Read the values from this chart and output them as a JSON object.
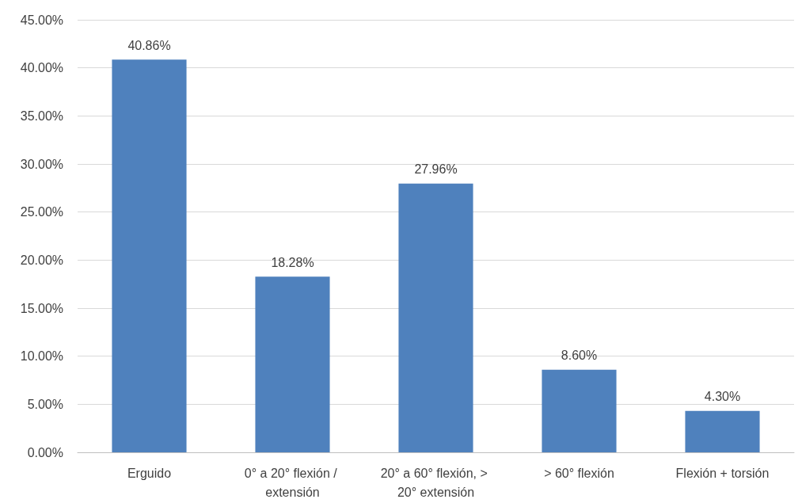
{
  "chart_data": {
    "type": "bar",
    "categories": [
      "Erguido",
      "0° a 20° flexión / extensión",
      "20° a 60° flexión, > 20° extensión",
      "> 60° flexión",
      "Flexión + torsión"
    ],
    "values": [
      40.86,
      18.28,
      27.96,
      8.6,
      4.3
    ],
    "value_labels": [
      "40.86%",
      "18.28%",
      "27.96%",
      "8.60%",
      "4.30%"
    ],
    "color": "#4f81bd",
    "ylim": [
      0,
      45
    ],
    "yticks": [
      {
        "value": 0,
        "label": "0.00%"
      },
      {
        "value": 5,
        "label": "5.00%"
      },
      {
        "value": 10,
        "label": "10.00%"
      },
      {
        "value": 15,
        "label": "15.00%"
      },
      {
        "value": 20,
        "label": "20.00%"
      },
      {
        "value": 25,
        "label": "25.00%"
      },
      {
        "value": 30,
        "label": "30.00%"
      },
      {
        "value": 35,
        "label": "35.00%"
      },
      {
        "value": 40,
        "label": "40.00%"
      },
      {
        "value": 45,
        "label": "45.00%"
      }
    ],
    "grid": "y"
  }
}
